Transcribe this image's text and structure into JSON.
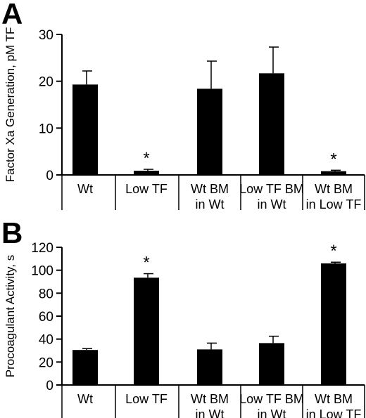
{
  "chart_data": [
    {
      "type": "bar",
      "panel_label": "A",
      "ylabel": "Factor Xa Generation, pM TF",
      "ylim": [
        0,
        30
      ],
      "yticks": [
        0,
        10,
        20,
        30
      ],
      "categories": [
        [
          "Wt"
        ],
        [
          "Low TF"
        ],
        [
          "Wt BM",
          "in Wt"
        ],
        [
          "Low TF BM",
          "in Wt"
        ],
        [
          "Wt BM",
          "in Low TF"
        ]
      ],
      "values": [
        19.3,
        0.9,
        18.4,
        21.7,
        0.8
      ],
      "errors": [
        2.9,
        0.3,
        5.9,
        5.6,
        0.2
      ],
      "significance": [
        "",
        "*",
        "",
        "",
        "*"
      ],
      "grid": false
    },
    {
      "type": "bar",
      "panel_label": "B",
      "ylabel": "Procoagulant Activity, s",
      "ylim": [
        0,
        120
      ],
      "yticks": [
        0,
        20,
        40,
        60,
        80,
        100,
        120
      ],
      "categories": [
        [
          "Wt"
        ],
        [
          "Low TF"
        ],
        [
          "Wt BM",
          "in Wt"
        ],
        [
          "Low TF BM",
          "in Wt"
        ],
        [
          "Wt BM",
          "in Low TF"
        ]
      ],
      "values": [
        30.5,
        93.5,
        31,
        36.5,
        106
      ],
      "errors": [
        1.2,
        3.5,
        5.5,
        6,
        1
      ],
      "significance": [
        "",
        "*",
        "",
        "",
        "*"
      ],
      "grid": false
    }
  ]
}
